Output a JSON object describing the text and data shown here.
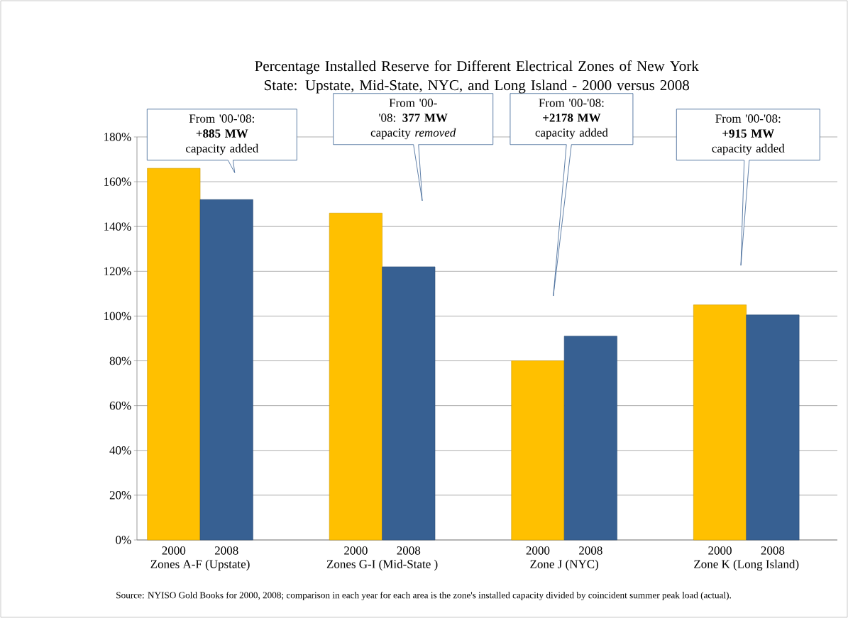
{
  "chart_data": {
    "type": "bar",
    "title": "Percentage Installed Reserve for Different Electrical Zones of New York State: Upstate, Mid-State, NYC, and Long Island - 2000 versus 2008",
    "categories": [
      "Zones A-F (Upstate)",
      "Zones G-I (Mid-State )",
      "Zone J  (NYC)",
      "Zone K (Long Island)"
    ],
    "series": [
      {
        "name": "2000",
        "color": "#ffc000",
        "values": [
          166,
          146,
          80,
          105
        ]
      },
      {
        "name": "2008",
        "color": "#376092",
        "values": [
          152,
          122,
          91,
          100.5
        ]
      }
    ],
    "ylim": [
      0,
      180
    ],
    "yticks": [
      {
        "value": 0,
        "label": "0%"
      },
      {
        "value": 20,
        "label": "20%"
      },
      {
        "value": 40,
        "label": "40%"
      },
      {
        "value": 60,
        "label": "60%"
      },
      {
        "value": 80,
        "label": "80%"
      },
      {
        "value": 100,
        "label": "100%"
      },
      {
        "value": 120,
        "label": "120%"
      },
      {
        "value": 140,
        "label": "140%"
      },
      {
        "value": 160,
        "label": "160%"
      },
      {
        "value": 180,
        "label": "180%"
      }
    ],
    "grid": "y",
    "annotations": [
      "From '00-'08: **+885 MW** capacity added",
      "From '00-'08: **377 MW** capacity *removed*",
      "From '00-'08: **+2178 MW** capacity added",
      "From '00-'08: **+915 MW** capacity added",
      "Source:  NYISO Gold Books for 2000, 2008; comparison in each year for each area is the zone's installed capacity divided by coincident summer peak load (actual)."
    ]
  }
}
